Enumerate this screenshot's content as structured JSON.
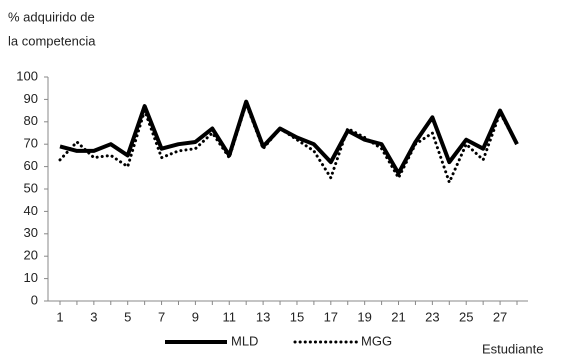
{
  "chart_data": {
    "type": "line",
    "y_label": [
      "% adquirido de",
      "la competencia"
    ],
    "x_label": "Estudiante",
    "categories": [
      1,
      null,
      3,
      null,
      5,
      null,
      7,
      null,
      9,
      null,
      11,
      null,
      13,
      null,
      15,
      null,
      17,
      null,
      19,
      null,
      21,
      null,
      23,
      null,
      25,
      null,
      27,
      null
    ],
    "series": [
      {
        "name": "MLD",
        "color": "#000000",
        "style": "solid",
        "values": [
          69,
          67,
          67,
          70,
          65,
          87,
          68,
          70,
          71,
          77,
          65,
          89,
          69,
          77,
          73,
          70,
          62,
          76,
          72,
          70,
          57,
          71,
          82,
          62,
          72,
          68,
          85,
          70
        ]
      },
      {
        "name": "MGG",
        "color": "#000000",
        "style": "dotted",
        "values": [
          63,
          71,
          64,
          65,
          60,
          85,
          64,
          67,
          68,
          75,
          64,
          88,
          68,
          77,
          72,
          67,
          55,
          77,
          73,
          68,
          55,
          70,
          75,
          53,
          70,
          63,
          84,
          70
        ]
      }
    ],
    "ylim": [
      0,
      100
    ],
    "yticks": [
      0,
      10,
      20,
      30,
      40,
      50,
      60,
      70,
      80,
      90,
      100
    ],
    "grid": false,
    "legend": "bottom"
  }
}
